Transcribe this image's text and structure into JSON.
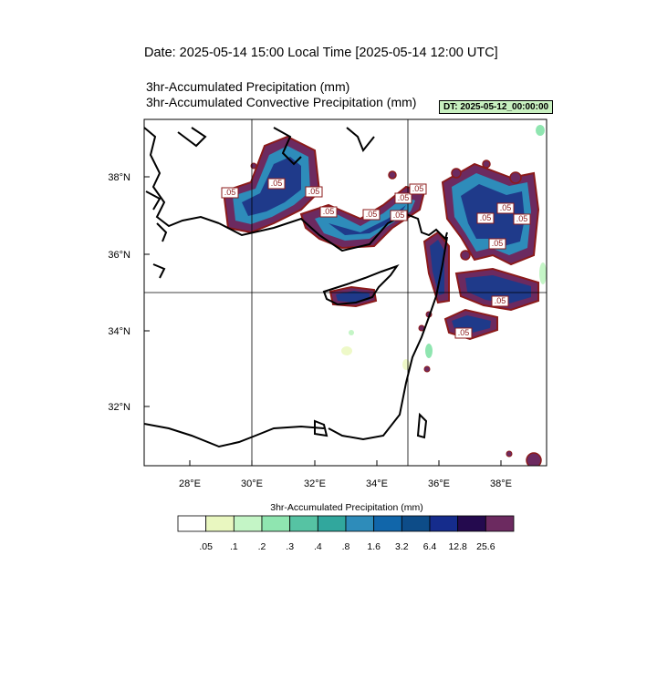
{
  "title": "Date: 2025-05-14  15:00 Local Time [2025-05-14  12:00 UTC]",
  "subtitle1": "3hr-Accumulated Precipitation   (mm)",
  "subtitle2": "3hr-Accumulated Convective Precipitation   (mm)",
  "dt_label": "DT: 2025-05-12_00:00:00",
  "x_ticks": [
    "28°E",
    "30°E",
    "32°E",
    "34°E",
    "36°E",
    "38°E"
  ],
  "y_ticks": [
    "38°N",
    "36°N",
    "34°N",
    "32°N"
  ],
  "contour_labels": [
    ".05",
    ".05",
    ".05",
    ".05",
    ".05",
    ".05",
    ".05",
    ".05",
    ".05",
    ".05",
    ".05",
    ".05",
    ".05",
    ".05"
  ],
  "colorbar": {
    "title": "3hr-Accumulated Precipitation  (mm)",
    "levels": [
      ".05",
      ".1",
      ".2",
      ".3",
      ".4",
      ".8",
      "1.6",
      "3.2",
      "6.4",
      "12.8",
      "25.6"
    ],
    "colors": [
      "#ffffff",
      "#e9f7c0",
      "#c4f5c6",
      "#8fe5b0",
      "#56c3a3",
      "#31a79d",
      "#2e8cba",
      "#1166aa",
      "#0d4c88",
      "#152c8c",
      "#240a4e",
      "#6c2a60"
    ]
  },
  "colors": {
    "contour_outline": "#8b1a1a",
    "light_precip": "#9fe8c0",
    "trace_precip": "#eef9c8",
    "heavy_precip": "#1f3a8a"
  }
}
